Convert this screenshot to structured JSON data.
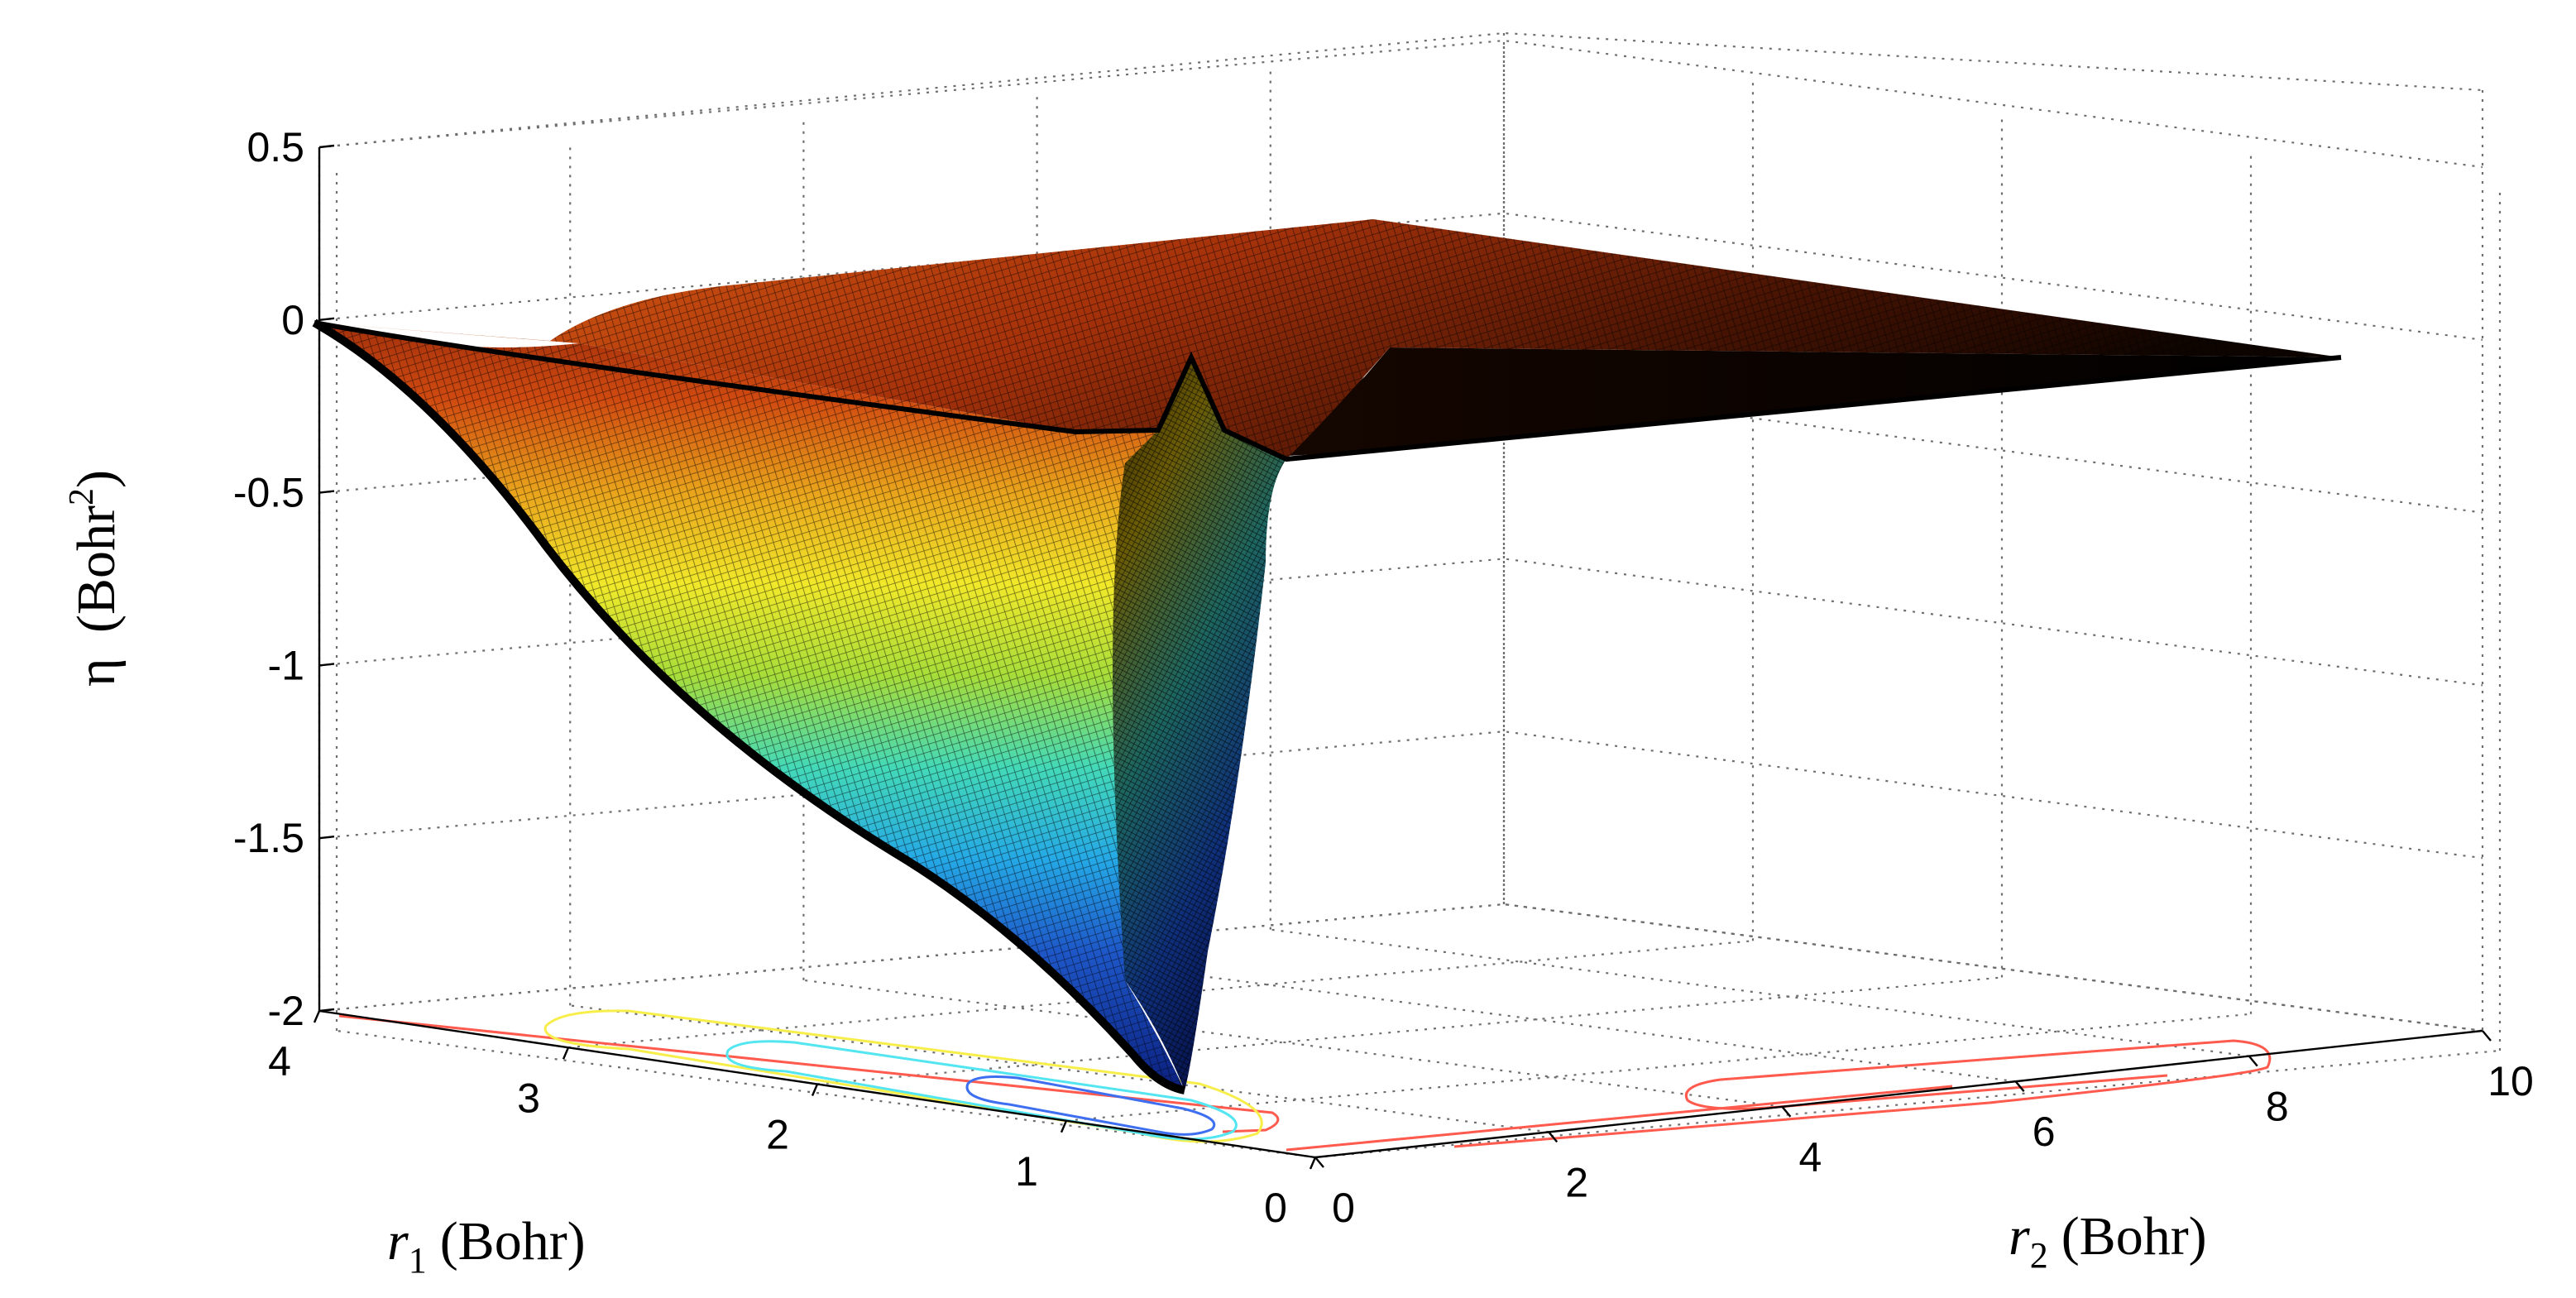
{
  "chart_data": {
    "type": "surface",
    "zlabel": {
      "symbol": "η",
      "text": "(Bohr",
      "sup": "2",
      "close": ")"
    },
    "xlabel": {
      "var": "r",
      "sub": "1",
      "text": "(Bohr)"
    },
    "ylabel": {
      "var": "r",
      "sub": "2",
      "text": "(Bohr)"
    },
    "zticks": [
      "0.5",
      "0",
      "-0.5",
      "-1",
      "-1.5",
      "-2"
    ],
    "r1ticks": [
      "4",
      "3",
      "2",
      "1",
      "0"
    ],
    "r2ticks": [
      "0",
      "2",
      "4",
      "6",
      "8",
      "10"
    ],
    "zlim": [
      -2,
      0.5
    ],
    "r1lim": [
      0,
      4
    ],
    "r2lim": [
      0,
      10
    ],
    "grid": true,
    "colormap": "jet",
    "surface_extrema": {
      "min": {
        "r1": 0.5,
        "r2": 0.5,
        "eta": -1.9
      },
      "far_field": {
        "eta": 0
      }
    },
    "contour_levels": [
      {
        "name": "red",
        "color": "#ff5a4e"
      },
      {
        "name": "yellow",
        "color": "#f7ee4a"
      },
      {
        "name": "cyan",
        "color": "#53e6f1"
      },
      {
        "name": "blue",
        "color": "#3d6ff0"
      }
    ]
  }
}
